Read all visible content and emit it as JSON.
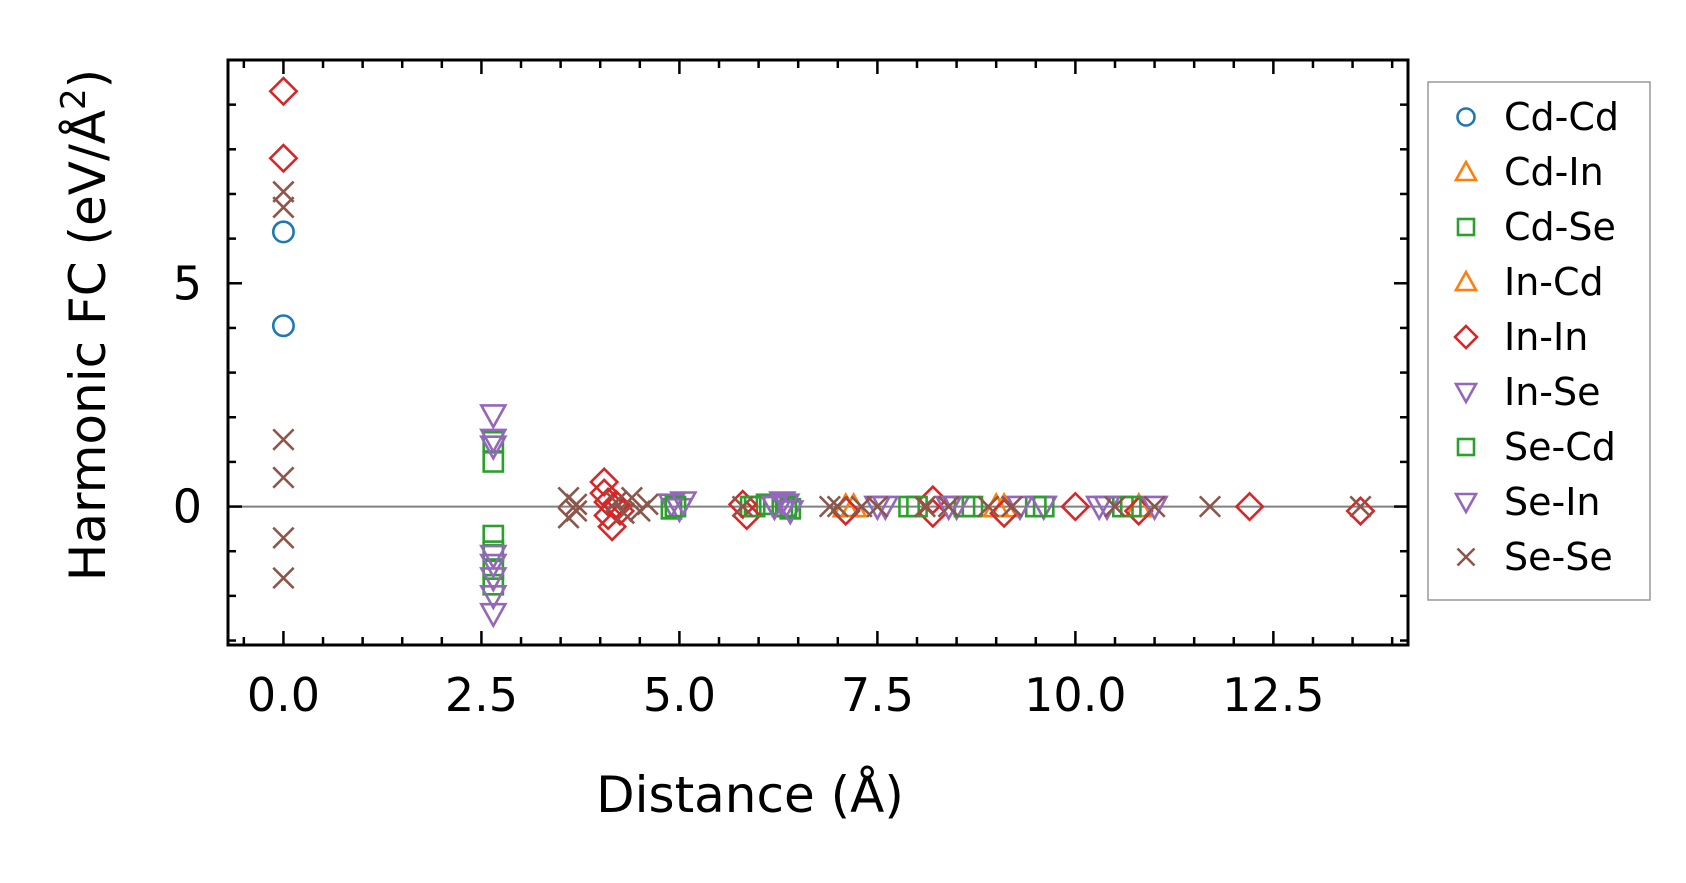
{
  "chart_data": {
    "type": "scatter",
    "xlabel": "Distance (Å)",
    "ylabel": "Harmonic FC (eV/Å",
    "ylabel_sup": "2",
    "ylabel_close": ")",
    "xlim": [
      -0.7,
      14.2
    ],
    "ylim": [
      -3.1,
      10.0
    ],
    "xticks": [
      0.0,
      2.5,
      5.0,
      7.5,
      10.0,
      12.5
    ],
    "xtick_labels": [
      "0.0",
      "2.5",
      "5.0",
      "7.5",
      "10.0",
      "12.5"
    ],
    "yticks": [
      0,
      5
    ],
    "ytick_labels": [
      "0",
      "5"
    ],
    "reference_line_y": 0,
    "legend_position": "right-outside",
    "series": [
      {
        "name": "Cd-Cd",
        "marker": "circle",
        "color": "#1f77b4",
        "x": [
          0.0,
          0.0
        ],
        "y": [
          6.15,
          4.05
        ]
      },
      {
        "name": "Cd-In",
        "marker": "triangle-up",
        "color": "#ff7f0e",
        "x": [
          7.1,
          9.1,
          10.8
        ],
        "y": [
          0.0,
          0.0,
          0.0
        ]
      },
      {
        "name": "Cd-Se",
        "marker": "square",
        "color": "#2ca02c",
        "x": [
          2.65,
          2.65,
          2.65,
          2.65,
          2.65,
          2.65,
          4.9,
          5.9,
          6.1,
          6.3,
          6.4,
          7.9,
          8.7,
          9.6,
          10.6
        ],
        "y": [
          1.45,
          1.0,
          -0.65,
          -1.0,
          -1.4,
          -1.75,
          -0.05,
          0.0,
          0.05,
          0.0,
          -0.05,
          0.0,
          0.0,
          0.0,
          0.0
        ]
      },
      {
        "name": "In-Cd",
        "marker": "triangle-up",
        "color": "#ff7f0e",
        "x": [
          7.2,
          9.0
        ],
        "y": [
          0.0,
          0.0
        ]
      },
      {
        "name": "In-In",
        "marker": "diamond",
        "color": "#d62728",
        "x": [
          0.0,
          0.0,
          4.05,
          4.05,
          4.1,
          4.1,
          4.15,
          4.2,
          4.25,
          5.8,
          5.85,
          7.1,
          8.2,
          8.2,
          9.1,
          10.0,
          10.8,
          12.2,
          13.6
        ],
        "y": [
          9.3,
          7.8,
          0.55,
          0.3,
          0.1,
          -0.2,
          -0.45,
          0.05,
          -0.1,
          0.05,
          -0.2,
          -0.1,
          0.15,
          -0.15,
          -0.15,
          0.0,
          -0.1,
          0.0,
          -0.1
        ]
      },
      {
        "name": "In-Se",
        "marker": "triangle-down",
        "color": "#9467bd",
        "x": [
          2.65,
          2.65,
          4.9,
          5.0,
          6.2,
          6.3,
          6.4,
          7.6,
          8.5,
          9.6,
          10.4,
          11.0
        ],
        "y": [
          2.05,
          1.5,
          0.05,
          -0.05,
          0.0,
          0.1,
          -0.1,
          0.0,
          0.0,
          0.0,
          0.0,
          0.0
        ]
      },
      {
        "name": "Se-Cd",
        "marker": "square",
        "color": "#2ca02c",
        "x": [
          4.95,
          5.95,
          6.35,
          8.0,
          8.6,
          9.5,
          10.7
        ],
        "y": [
          0.0,
          0.0,
          0.0,
          0.0,
          0.0,
          0.0,
          0.0
        ]
      },
      {
        "name": "Se-In",
        "marker": "triangle-down",
        "color": "#9467bd",
        "x": [
          2.65,
          2.65,
          2.65,
          2.65,
          2.65,
          2.65,
          5.05,
          6.2,
          6.35,
          7.5,
          8.4,
          9.3,
          10.3
        ],
        "y": [
          1.35,
          -1.1,
          -1.3,
          -1.6,
          -2.0,
          -2.4,
          0.1,
          0.0,
          0.05,
          0.0,
          0.0,
          0.0,
          0.0
        ]
      },
      {
        "name": "Se-Se",
        "marker": "x",
        "color": "#8c564b",
        "x": [
          0.0,
          0.0,
          0.0,
          0.0,
          0.0,
          0.0,
          3.6,
          3.6,
          3.7,
          3.7,
          4.2,
          4.3,
          4.4,
          4.5,
          4.6,
          5.8,
          6.9,
          7.0,
          7.3,
          7.5,
          8.1,
          8.4,
          8.9,
          9.2,
          10.5,
          11.0,
          11.7,
          13.6
        ],
        "y": [
          7.05,
          6.7,
          1.5,
          0.65,
          -0.7,
          -1.6,
          0.2,
          -0.25,
          0.05,
          -0.1,
          0.1,
          -0.15,
          0.2,
          -0.1,
          0.05,
          0.0,
          0.0,
          0.0,
          0.0,
          0.0,
          0.0,
          0.0,
          0.0,
          0.0,
          0.0,
          0.0,
          0.0,
          0.0
        ]
      }
    ]
  }
}
